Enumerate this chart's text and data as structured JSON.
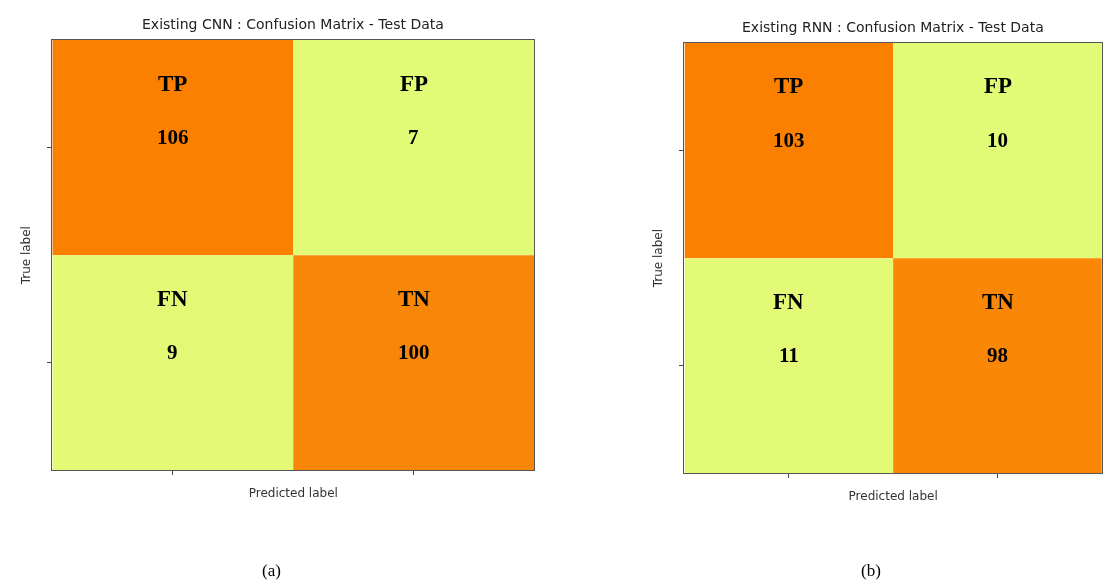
{
  "chart_data": [
    {
      "type": "heatmap",
      "title": "Existing CNN : Confusion Matrix - Test Data",
      "xlabel": "Predicted label",
      "ylabel": "True label",
      "categories": [
        null,
        null
      ],
      "y_categories": [
        null,
        null
      ],
      "cells": [
        [
          106,
          7
        ],
        [
          9,
          100
        ]
      ],
      "data_labels": true,
      "colors": [
        "#e2fb77",
        "#fb8000"
      ],
      "annotations": [
        "TP",
        "FP",
        "FN",
        "TN",
        "(a)"
      ]
    },
    {
      "type": "heatmap",
      "title": "Existing RNN : Confusion Matrix - Test Data",
      "xlabel": "Predicted label",
      "ylabel": "True label",
      "categories": [
        null,
        null
      ],
      "y_categories": [
        null,
        null
      ],
      "cells": [
        [
          103,
          10
        ],
        [
          11,
          98
        ]
      ],
      "data_labels": true,
      "colors": [
        "#e2fb77",
        "#fb8000"
      ],
      "annotations": [
        "TP",
        "FP",
        "FN",
        "TN",
        "(b)"
      ]
    }
  ]
}
